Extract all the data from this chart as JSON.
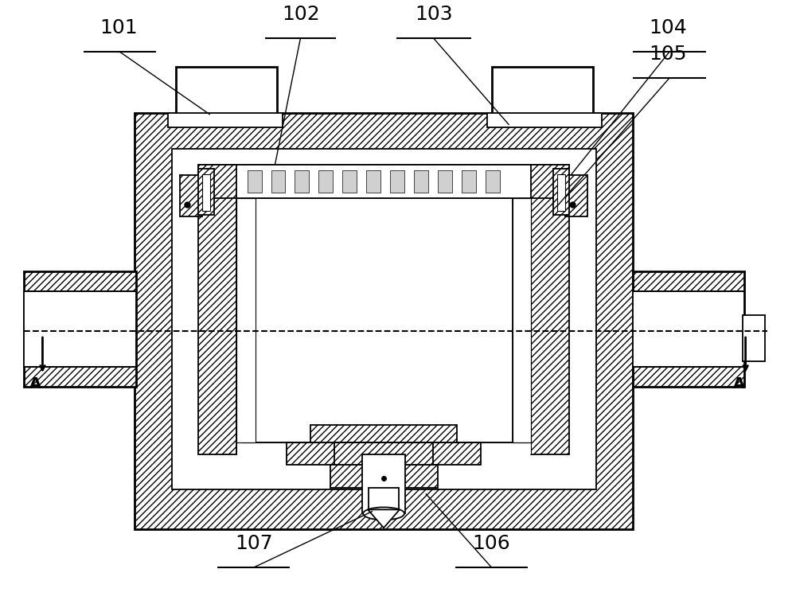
{
  "bg_color": "#ffffff",
  "line_color": "#000000",
  "lw_thin": 0.8,
  "lw_med": 1.3,
  "lw_thick": 2.0,
  "label_fs": 18,
  "fig_w": 10.0,
  "fig_h": 7.59,
  "dpi": 100
}
